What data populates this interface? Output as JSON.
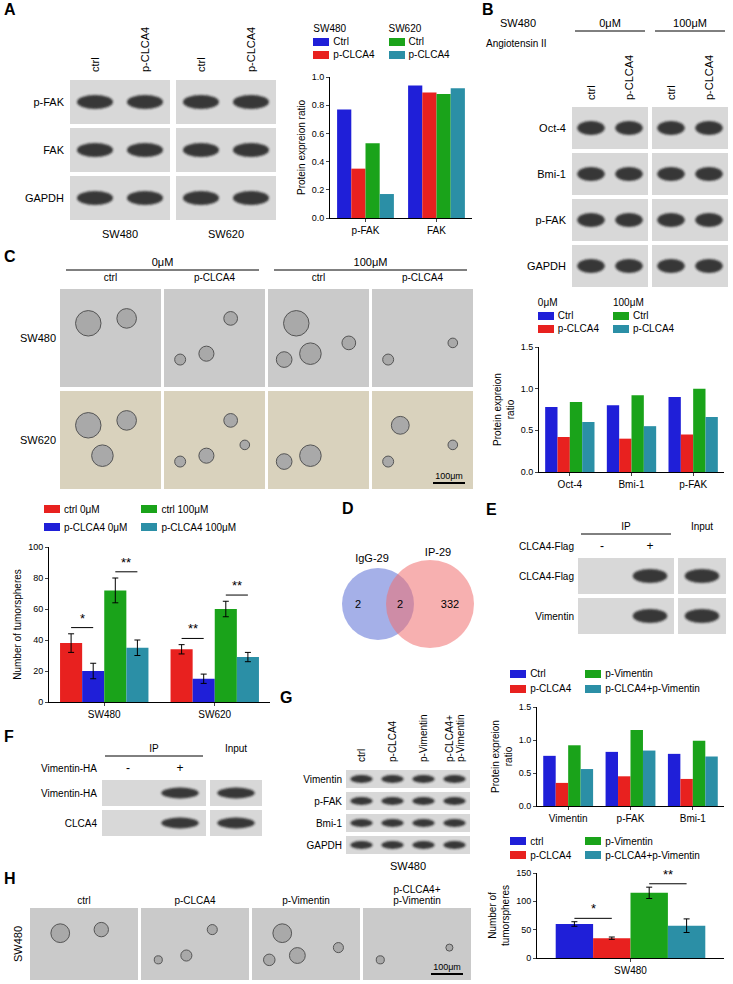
{
  "chart_data": [
    {
      "type": "bar",
      "y_label": "Protein expreion ratio",
      "categories": [
        "p-FAK",
        "FAK"
      ],
      "series": [
        {
          "name": "Ctrl",
          "group": "SW480",
          "color": "#1f1fd8",
          "values": [
            0.77,
            0.94
          ]
        },
        {
          "name": "p-CLCA4",
          "group": "SW480",
          "color": "#e8211f",
          "values": [
            0.35,
            0.89
          ]
        },
        {
          "name": "Ctrl",
          "group": "SW620",
          "color": "#1aa31a",
          "values": [
            0.53,
            0.88
          ]
        },
        {
          "name": "p-CLCA4",
          "group": "SW620",
          "color": "#2b8fa6",
          "values": [
            0.17,
            0.92
          ]
        }
      ],
      "ylim": [
        0,
        1
      ],
      "yticks": [
        {
          "value": 0,
          "label": "0.0"
        },
        0.2,
        0.4,
        0.6,
        0.8,
        {
          "value": 1,
          "label": "1.0"
        }
      ],
      "grid": false,
      "legend": "top"
    },
    {
      "type": "bar",
      "y_label": "Protein expreion ratio",
      "categories": [
        "Oct-4",
        "Bmi-1",
        "p-FAK"
      ],
      "series": [
        {
          "name": "Ctrl",
          "group": "0μM",
          "color": "#1f1fd8",
          "values": [
            0.78,
            0.8,
            0.9
          ]
        },
        {
          "name": "p-CLCA4",
          "group": "0μM",
          "color": "#e8211f",
          "values": [
            0.42,
            0.4,
            0.45
          ]
        },
        {
          "name": "Ctrl",
          "group": "100μM",
          "color": "#1aa31a",
          "values": [
            0.84,
            0.92,
            1.0
          ]
        },
        {
          "name": "p-CLCA4",
          "group": "100μM",
          "color": "#2b8fa6",
          "values": [
            0.6,
            0.55,
            0.66
          ]
        }
      ],
      "ylim": [
        0,
        1.5
      ],
      "yticks": [
        {
          "value": 0,
          "label": "0.0"
        },
        0.5,
        {
          "value": 1,
          "label": "1.0"
        },
        1.5
      ],
      "grid": false,
      "legend": "top"
    },
    {
      "type": "bar",
      "y_label": "Number of tumorspheres",
      "categories": [
        "SW480",
        "SW620"
      ],
      "series": [
        {
          "name": "ctrl 0μM",
          "color": "#e8211f",
          "values": [
            38,
            34
          ],
          "errors": [
            6,
            3
          ]
        },
        {
          "name": "p-CLCA4 0μM",
          "color": "#1f1fd8",
          "values": [
            20,
            15
          ],
          "errors": [
            5,
            3
          ]
        },
        {
          "name": "ctrl 100μM",
          "color": "#1aa31a",
          "values": [
            72,
            60
          ],
          "errors": [
            8,
            5
          ]
        },
        {
          "name": "p-CLCA4 100μM",
          "color": "#2b8fa6",
          "values": [
            35,
            29
          ],
          "errors": [
            5,
            3
          ]
        }
      ],
      "significance": [
        {
          "text": "*",
          "category": "SW480",
          "series": [
            "ctrl 0μM",
            "p-CLCA4 0μM"
          ]
        },
        {
          "text": "**",
          "category": "SW480",
          "series": [
            "ctrl 100μM",
            "p-CLCA4 100μM"
          ]
        },
        {
          "text": "**",
          "category": "SW620",
          "series": [
            "ctrl 0μM",
            "p-CLCA4 0μM"
          ]
        },
        {
          "text": "**",
          "category": "SW620",
          "series": [
            "ctrl 100μM",
            "p-CLCA4 100μM"
          ]
        }
      ],
      "ylim": [
        0,
        100
      ],
      "yticks": [
        0,
        20,
        40,
        60,
        80,
        100
      ],
      "grid": false,
      "legend": "top"
    },
    {
      "type": "bar",
      "y_label": "Protein expreion ratio",
      "categories": [
        "Vimentin",
        "p-FAK",
        "Bmi-1"
      ],
      "series": [
        {
          "name": "Ctrl",
          "color": "#1f1fd8",
          "values": [
            0.76,
            0.82,
            0.79
          ]
        },
        {
          "name": "p-CLCA4",
          "color": "#e8211f",
          "values": [
            0.35,
            0.45,
            0.41
          ]
        },
        {
          "name": "p-Vimentin",
          "color": "#1aa31a",
          "values": [
            0.92,
            1.15,
            0.99
          ]
        },
        {
          "name": "p-CLCA4+p-Vimentin",
          "color": "#2b8fa6",
          "values": [
            0.56,
            0.84,
            0.75
          ]
        }
      ],
      "ylim": [
        0,
        1.5
      ],
      "yticks": [
        {
          "value": 0,
          "label": "0.0"
        },
        0.5,
        {
          "value": 1,
          "label": "1.0"
        },
        1.5
      ],
      "grid": false,
      "legend": "top"
    },
    {
      "type": "bar",
      "y_label": "Number of tumorspheres",
      "categories": [
        "SW480"
      ],
      "series": [
        {
          "name": "ctrl",
          "color": "#1f1fd8",
          "values": [
            60
          ],
          "errors": [
            4
          ]
        },
        {
          "name": "p-CLCA4",
          "color": "#e8211f",
          "values": [
            35
          ],
          "errors": [
            2
          ]
        },
        {
          "name": "p-Vimentin",
          "color": "#1aa31a",
          "values": [
            115
          ],
          "errors": [
            10
          ]
        },
        {
          "name": "p-CLCA4+p-Vimentin",
          "color": "#2b8fa6",
          "values": [
            57
          ],
          "errors": [
            12
          ]
        }
      ],
      "significance": [
        {
          "text": "*",
          "category": "SW480",
          "series": [
            "ctrl",
            "p-CLCA4"
          ]
        },
        {
          "text": "**",
          "category": "SW480",
          "series": [
            "p-Vimentin",
            "p-CLCA4+p-Vimentin"
          ]
        }
      ],
      "ylim": [
        0,
        150
      ],
      "yticks": [
        0,
        50,
        100,
        150
      ],
      "grid": false,
      "legend": "top"
    }
  ],
  "blots": [
    {
      "panel": "A",
      "lane_groups": [
        {
          "label": "SW480",
          "lanes": [
            "ctrl",
            "p-CLCA4"
          ]
        },
        {
          "label": "SW620",
          "lanes": [
            "ctrl",
            "p-CLCA4"
          ]
        }
      ],
      "rows": [
        "p-FAK",
        "FAK",
        "GAPDH"
      ]
    },
    {
      "panel": "B",
      "title": "SW480",
      "treatment": "Angiotensin II",
      "lane_groups": [
        {
          "label": "0μM",
          "lanes": [
            "ctrl",
            "p-CLCA4"
          ]
        },
        {
          "label": "100μM",
          "lanes": [
            "ctrl",
            "p-CLCA4"
          ]
        }
      ],
      "rows": [
        "Oct-4",
        "Bmi-1",
        "p-FAK",
        "GAPDH"
      ]
    },
    {
      "panel": "E",
      "lane_groups": [
        {
          "label": "IP",
          "lanes": [
            "-",
            "+"
          ]
        }
      ],
      "extra_lanes": [
        "Input"
      ],
      "lane_row_label": "CLCA4-Flag",
      "rows": [
        "CLCA4-Flag",
        "Vimentin"
      ],
      "bands": [
        [
          false,
          true,
          true
        ],
        [
          false,
          true,
          true
        ]
      ]
    },
    {
      "panel": "F",
      "lane_groups": [
        {
          "label": "IP",
          "lanes": [
            "-",
            "+"
          ]
        }
      ],
      "extra_lanes": [
        "Input"
      ],
      "lane_row_label": "Vimentin-HA",
      "rows": [
        "Vimentin-HA",
        "CLCA4"
      ],
      "bands": [
        [
          false,
          true,
          true
        ],
        [
          false,
          true,
          true
        ]
      ]
    },
    {
      "panel": "G",
      "lanes": [
        "ctrl",
        "p-CLCA4",
        "p-Vimentin",
        "p-CLCA4+ p-Vimentin"
      ],
      "rows": [
        "Vimentin",
        "p-FAK",
        "Bmi-1",
        "GAPDH"
      ],
      "footer": "SW480"
    }
  ],
  "images": [
    {
      "panel": "C",
      "column_groups": [
        {
          "label": "0μM",
          "columns": [
            "ctrl",
            "p-CLCA4"
          ]
        },
        {
          "label": "100μM",
          "columns": [
            "ctrl",
            "p-CLCA4"
          ]
        }
      ],
      "rows": [
        "SW480",
        "SW620"
      ],
      "scale_bar": "100μm"
    },
    {
      "panel": "H",
      "columns": [
        "ctrl",
        "p-CLCA4",
        "p-Vimentin",
        "p-CLCA4+ p-Vimentin"
      ],
      "rows": [
        "SW480"
      ],
      "scale_bar": "100μm"
    }
  ],
  "venn": {
    "panel": "D",
    "sets": [
      {
        "label": "IgG-29",
        "only": 2,
        "color": "#5b6fd6"
      },
      {
        "label": "IP-29",
        "only": 332,
        "color": "#f07070"
      }
    ],
    "overlap": 2
  }
}
